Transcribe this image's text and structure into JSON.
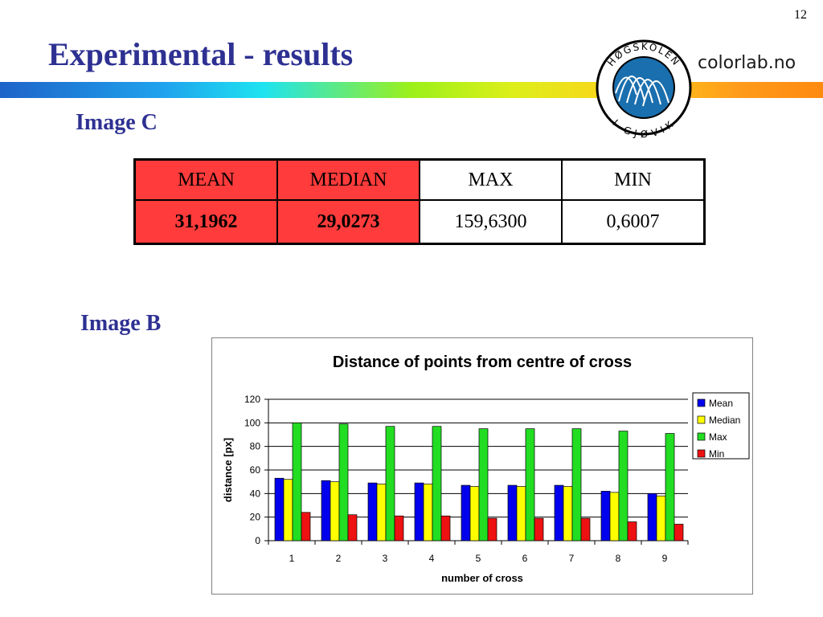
{
  "slide": {
    "number": "12",
    "title": "Experimental - results",
    "logo_text": "colorlab.no",
    "logo_ring_top": "HØGSKOLEN",
    "logo_ring_bottom": "I GJØVIK"
  },
  "section_c": {
    "heading": "Image C",
    "table": {
      "headers": [
        "MEAN",
        "MEDIAN",
        "MAX",
        "MIN"
      ],
      "values": [
        "31,1962",
        "29,0273",
        "159,6300",
        "0,6007"
      ]
    }
  },
  "section_b": {
    "heading": "Image B"
  },
  "colors": {
    "title": "#2e3192",
    "highlight_cells": "#ff3b3b",
    "mean": "#0000ee",
    "median": "#ffff00",
    "max": "#22dd22",
    "min": "#ee1111"
  },
  "chart_data": {
    "type": "bar",
    "title": "Distance of points from centre of cross",
    "xlabel": "number of cross",
    "ylabel": "distance [px]",
    "ylim": [
      0,
      120
    ],
    "yticks": [
      0,
      20,
      40,
      60,
      80,
      100,
      120
    ],
    "categories": [
      "1",
      "2",
      "3",
      "4",
      "5",
      "6",
      "7",
      "8",
      "9"
    ],
    "legend_position": "right",
    "grid": true,
    "series": [
      {
        "name": "Mean",
        "color": "#0000ee",
        "values": [
          53,
          51,
          49,
          49,
          47,
          47,
          47,
          42,
          40
        ]
      },
      {
        "name": "Median",
        "color": "#ffff00",
        "values": [
          52,
          50,
          48,
          48,
          46,
          46,
          46,
          41,
          38
        ]
      },
      {
        "name": "Max",
        "color": "#22dd22",
        "values": [
          100,
          99,
          97,
          97,
          95,
          95,
          95,
          93,
          91
        ]
      },
      {
        "name": "Min",
        "color": "#ee1111",
        "values": [
          24,
          22,
          21,
          21,
          19,
          19,
          19,
          16,
          14
        ]
      }
    ]
  }
}
